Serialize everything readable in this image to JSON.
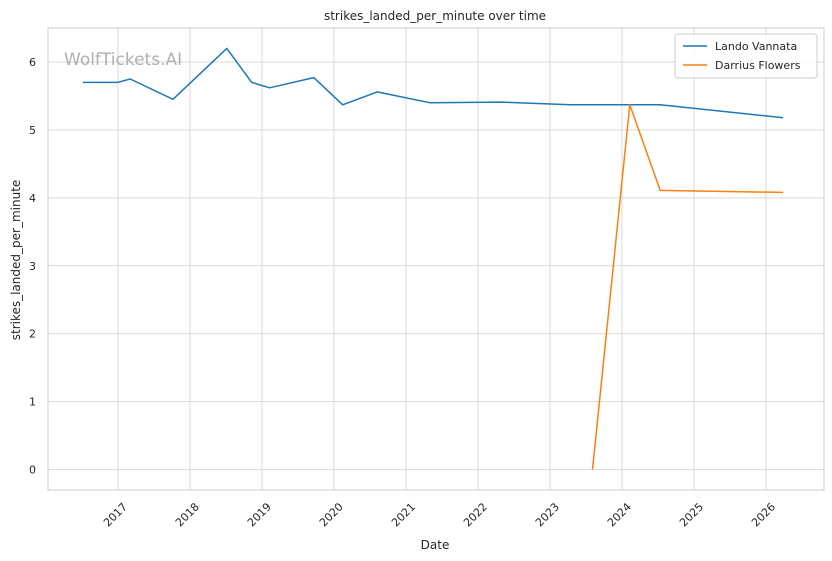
{
  "chart_data": {
    "type": "line",
    "title": "strikes_landed_per_minute over time",
    "xlabel": "Date",
    "ylabel": "strikes_landed_per_minute",
    "watermark": "WolfTickets.AI",
    "x_ticks": [
      "2017",
      "2018",
      "2019",
      "2020",
      "2021",
      "2022",
      "2023",
      "2024",
      "2025",
      "2026"
    ],
    "y_ticks": [
      0,
      1,
      2,
      3,
      4,
      5,
      6
    ],
    "xlim": [
      "2016-01-12",
      "2026-10-22"
    ],
    "ylim": [
      -0.3,
      6.5
    ],
    "grid": true,
    "legend_position": "top-right",
    "series": [
      {
        "name": "Lando Vannata",
        "color": "#1f77b4",
        "x": [
          "2016-07-07",
          "2016-12-30",
          "2017-03-04",
          "2017-10-07",
          "2018-07-07",
          "2018-11-10",
          "2019-02-09",
          "2019-09-21",
          "2020-02-15",
          "2020-08-08",
          "2021-05-01",
          "2022-04-30",
          "2023-04-15",
          "2024-02-10",
          "2024-07-13",
          "2026-03-28"
        ],
        "y": [
          5.7,
          5.7,
          5.75,
          5.45,
          6.2,
          5.7,
          5.62,
          5.77,
          5.37,
          5.56,
          5.4,
          5.41,
          5.37,
          5.37,
          5.37,
          5.18
        ]
      },
      {
        "name": "Darrius Flowers",
        "color": "#ff7f0e",
        "x": [
          "2023-08-05",
          "2024-02-10",
          "2024-07-13",
          "2026-03-28"
        ],
        "y": [
          0.0,
          5.37,
          4.11,
          4.08
        ]
      }
    ]
  }
}
